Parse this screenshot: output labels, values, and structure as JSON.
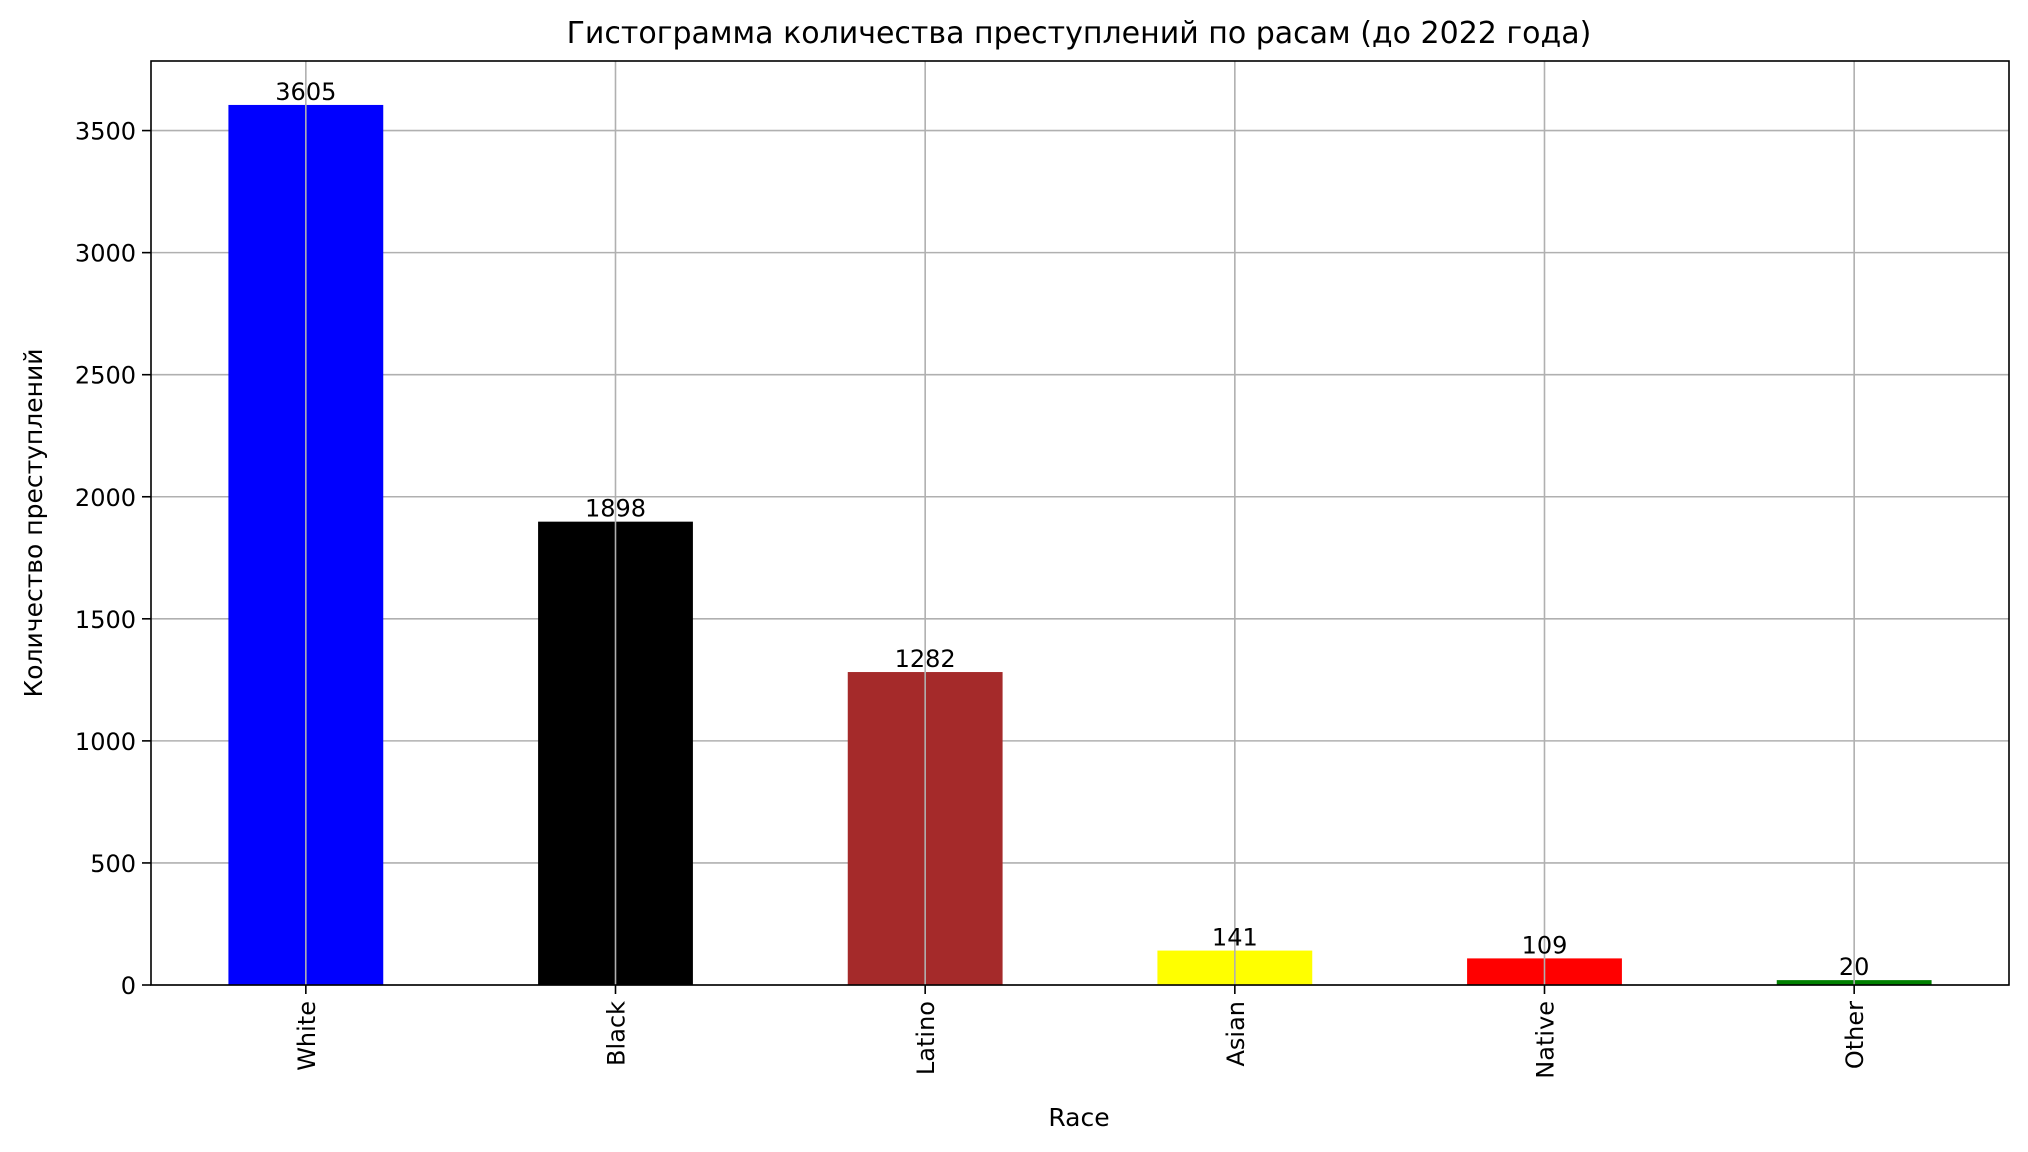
{
  "chart_data": {
    "type": "bar",
    "title": "Гистограмма количества преступлений по расам (до 2022 года)",
    "xlabel": "Race",
    "ylabel": "Количество преступлений",
    "categories": [
      "White",
      "Black",
      "Latino",
      "Asian",
      "Native",
      "Other"
    ],
    "values": [
      3605,
      1898,
      1282,
      141,
      109,
      20
    ],
    "bar_labels": [
      "3605",
      "1898",
      "1282",
      "141",
      "109",
      "20"
    ],
    "colors": [
      "#0000ff",
      "#000000",
      "#a52a2a",
      "#ffff00",
      "#ff0000",
      "#008000"
    ],
    "ylim": [
      0,
      3785
    ],
    "yticks": [
      0,
      500,
      1000,
      1500,
      2000,
      2500,
      3000,
      3500
    ],
    "ytick_labels": [
      "0",
      "500",
      "1000",
      "1500",
      "2000",
      "2500",
      "3000",
      "3500"
    ],
    "grid": true,
    "legend": "none"
  }
}
